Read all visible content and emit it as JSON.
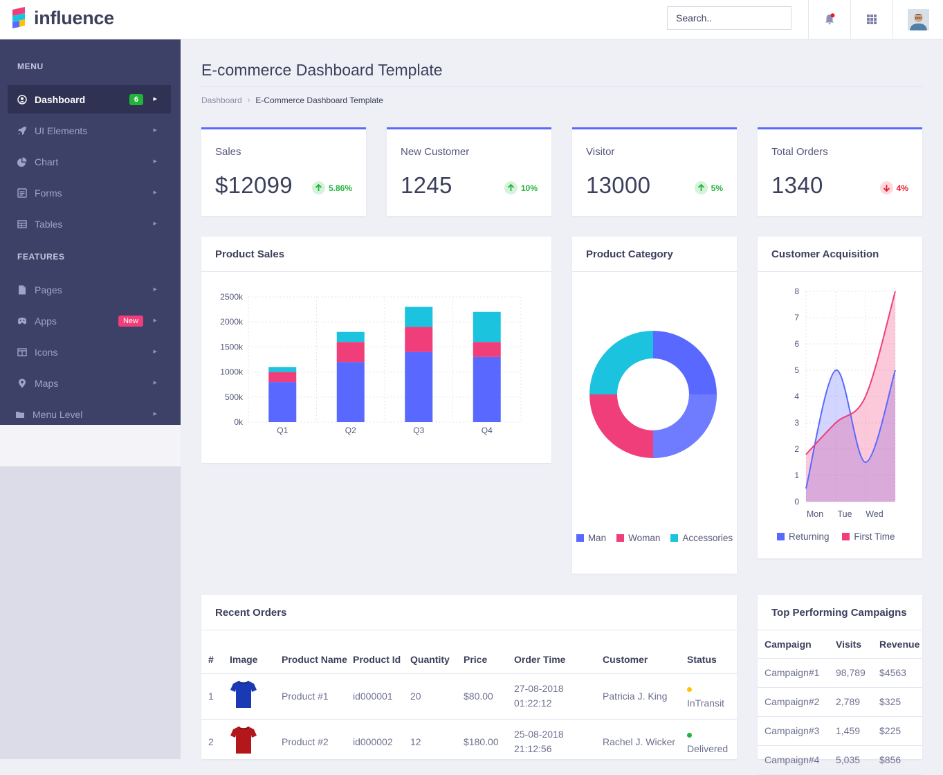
{
  "header": {
    "brand": "influence",
    "search_placeholder": "Search.."
  },
  "sidebar": {
    "menu_heading": "MENU",
    "features_heading": "FEATURES",
    "menu_items": [
      {
        "label": "Dashboard",
        "icon": "user-circle-icon",
        "badge": "6",
        "badge_color": "#22b33a",
        "active": true
      },
      {
        "label": "UI Elements",
        "icon": "rocket-icon"
      },
      {
        "label": "Chart",
        "icon": "pie-chart-icon"
      },
      {
        "label": "Forms",
        "icon": "form-icon"
      },
      {
        "label": "Tables",
        "icon": "table-icon"
      }
    ],
    "feature_items": [
      {
        "label": "Pages",
        "icon": "page-icon"
      },
      {
        "label": "Apps",
        "icon": "rocket-icon",
        "badge": "New",
        "badge_color": "#ef3e7a"
      },
      {
        "label": "Icons",
        "icon": "columns-icon"
      },
      {
        "label": "Maps",
        "icon": "map-pin-icon"
      },
      {
        "label": "Menu Level",
        "icon": "folder-icon"
      }
    ]
  },
  "page": {
    "title": "E-commerce Dashboard Template",
    "breadcrumb": [
      "Dashboard",
      "E-Commerce Dashboard Template"
    ]
  },
  "stats": [
    {
      "label": "Sales",
      "value": "$12099",
      "change": "5.86%",
      "direction": "up"
    },
    {
      "label": "New Customer",
      "value": "1245",
      "change": "10%",
      "direction": "up"
    },
    {
      "label": "Visitor",
      "value": "13000",
      "change": "5%",
      "direction": "up"
    },
    {
      "label": "Total Orders",
      "value": "1340",
      "change": "4%",
      "direction": "down"
    }
  ],
  "colors": {
    "accent": "#5969ff",
    "pink": "#ef3e7a",
    "cyan": "#1cc3df",
    "up": "#22b33a",
    "down": "#ef172c"
  },
  "chart_data": [
    {
      "title": "Product Sales",
      "type": "bar",
      "stacked": true,
      "categories": [
        "Q1",
        "Q2",
        "Q3",
        "Q4"
      ],
      "ylim": [
        0,
        2500
      ],
      "yticks": [
        "0k",
        "500k",
        "1000k",
        "1500k",
        "2000k",
        "2500k"
      ],
      "grid": true,
      "series": [
        {
          "values": [
            800,
            1200,
            1400,
            1300
          ],
          "color": "#5969ff"
        },
        {
          "values": [
            200,
            400,
            500,
            300
          ],
          "color": "#ef3e7a"
        },
        {
          "values": [
            100,
            200,
            400,
            600
          ],
          "color": "#1cc3df"
        }
      ]
    },
    {
      "title": "Product Category",
      "type": "pie",
      "donut": true,
      "series": [
        {
          "name": "Man",
          "value": 50,
          "color": "#5969ff"
        },
        {
          "name": "Woman",
          "value": 25,
          "color": "#ef3e7a"
        },
        {
          "name": "Accessories",
          "value": 25,
          "color": "#1cc3df"
        }
      ],
      "legend": "bottom"
    },
    {
      "title": "Customer Acquisition",
      "type": "area",
      "x": [
        "Mon",
        "Tue",
        "Wed",
        ""
      ],
      "ylim": [
        0,
        8
      ],
      "yticks": [
        "0",
        "1",
        "2",
        "3",
        "4",
        "5",
        "6",
        "7",
        "8"
      ],
      "grid": true,
      "series": [
        {
          "name": "Returning",
          "values": [
            0.5,
            5,
            1.5,
            5
          ],
          "color": "#5969ff"
        },
        {
          "name": "First Time",
          "values": [
            1.8,
            3,
            4,
            8
          ],
          "color": "#ef3e7a"
        }
      ],
      "legend": "bottom"
    }
  ],
  "orders": {
    "title": "Recent Orders",
    "headers": [
      "#",
      "Image",
      "Product Name",
      "Product Id",
      "Quantity",
      "Price",
      "Order Time",
      "Customer",
      "Status"
    ],
    "rows": [
      {
        "num": "1",
        "image": "blue-tshirt",
        "name": "Product #1",
        "id": "id000001",
        "qty": "20",
        "price": "$80.00",
        "time": "27-08-2018 01:22:12",
        "customer": "Patricia J. King",
        "status": "InTransit",
        "status_color": "#ffc108",
        "shirt_color": "#1a39b4"
      },
      {
        "num": "2",
        "image": "red-tshirt",
        "name": "Product #2",
        "id": "id000002",
        "qty": "12",
        "price": "$180.00",
        "time": "25-08-2018 21:12:56",
        "customer": "Rachel J. Wicker",
        "status": "Delivered",
        "status_color": "#22b33a",
        "shirt_color": "#b3161b"
      }
    ]
  },
  "campaigns": {
    "title": "Top Performing Campaigns",
    "headers": [
      "Campaign",
      "Visits",
      "Revenue"
    ],
    "rows": [
      {
        "name": "Campaign#1",
        "visits": "98,789",
        "revenue": "$4563"
      },
      {
        "name": "Campaign#2",
        "visits": "2,789",
        "revenue": "$325"
      },
      {
        "name": "Campaign#3",
        "visits": "1,459",
        "revenue": "$225"
      },
      {
        "name": "Campaign#4",
        "visits": "5,035",
        "revenue": "$856"
      }
    ]
  }
}
